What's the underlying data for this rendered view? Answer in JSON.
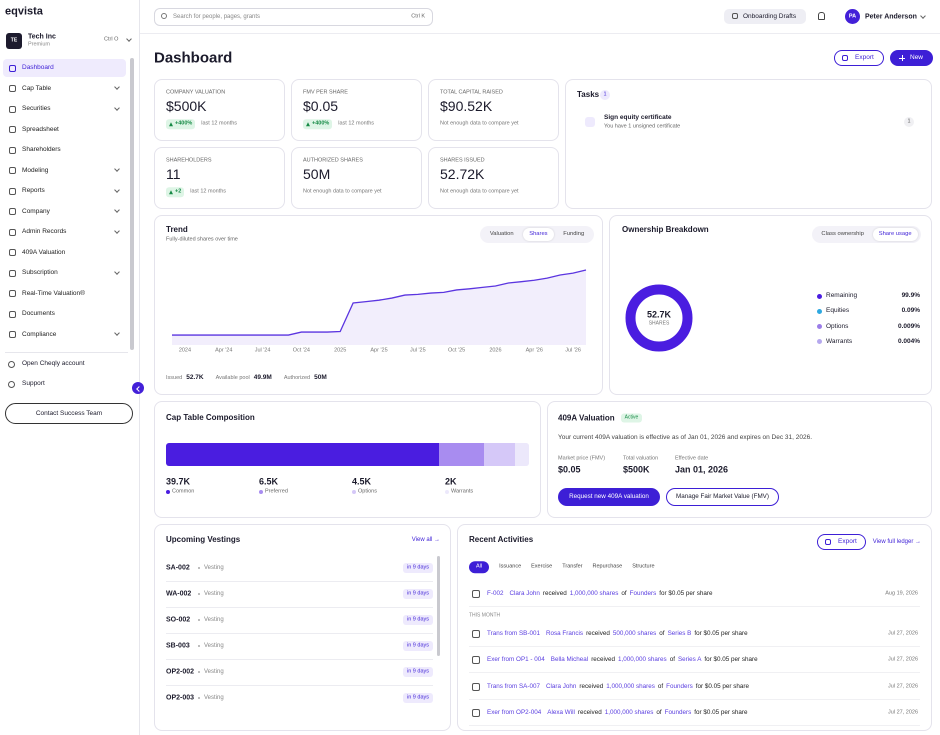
{
  "sidebar": {
    "logo": "eqvista",
    "company": {
      "initials": "TE",
      "name": "Tech Inc",
      "plan": "Premium",
      "shortcut": "Ctrl O"
    },
    "nav": [
      {
        "label": "Dashboard",
        "active": true
      },
      {
        "label": "Cap Table",
        "expandable": true
      },
      {
        "label": "Securities",
        "expandable": true
      },
      {
        "label": "Spreadsheet"
      },
      {
        "label": "Shareholders"
      },
      {
        "label": "Modeling",
        "expandable": true
      },
      {
        "label": "Reports",
        "expandable": true
      },
      {
        "label": "Company",
        "expandable": true
      },
      {
        "label": "Admin Records",
        "expandable": true
      },
      {
        "label": "409A Valuation"
      },
      {
        "label": "Subscription",
        "expandable": true
      },
      {
        "label": "Real-Time Valuation®"
      },
      {
        "label": "Documents"
      },
      {
        "label": "Compliance",
        "expandable": true
      }
    ],
    "links": [
      "Open Cheqly account",
      "Support"
    ],
    "button": "Contact Success Team"
  },
  "topbar": {
    "search_placeholder": "Search for people, pages, grants",
    "search_shortcut": "Ctrl K",
    "drafts_button": "Onboarding Drafts",
    "user": {
      "initials": "PA",
      "name": "Peter Anderson"
    }
  },
  "header": {
    "title": "Dashboard",
    "export_button": "Export",
    "new_button": "New"
  },
  "stats": [
    {
      "label": "COMPANY VALUATION",
      "value": "$500K",
      "badge": "+400%",
      "note": "last 12 months"
    },
    {
      "label": "FMV PER SHARE",
      "value": "$0.05",
      "badge": "+400%",
      "note": "last 12 months"
    },
    {
      "label": "TOTAL CAPITAL RAISED",
      "value": "$90.52K",
      "note": "Not enough data to compare yet"
    },
    {
      "label": "SHAREHOLDERS",
      "value": 11,
      "badge": "+2",
      "note": "last 12 months"
    },
    {
      "label": "AUTHORIZED SHARES",
      "value": "50M",
      "note": "Not enough data to compare yet"
    },
    {
      "label": "SHARES ISSUED",
      "value": "52.72K",
      "note": "Not enough data to compare yet"
    }
  ],
  "tasks": {
    "title": "Tasks",
    "count": 1,
    "items": [
      {
        "title": "Sign equity certificate",
        "subtitle": "You have 1 unsigned certificate",
        "count": 1
      }
    ]
  },
  "trend": {
    "title": "Trend",
    "subtitle": "Fully-diluted shares over time",
    "tabs": [
      {
        "label": "Valuation"
      },
      {
        "label": "Shares",
        "active": true
      },
      {
        "label": "Funding"
      }
    ],
    "color": "#5b35e0",
    "categories": [
      null,
      "2024",
      null,
      null,
      "Apr '24",
      null,
      null,
      "Jul '24",
      null,
      null,
      "Oct '24",
      null,
      null,
      "2025",
      null,
      null,
      "Apr '25",
      null,
      null,
      "Jul '25",
      null,
      null,
      "Oct '25",
      null,
      null,
      "2026",
      null,
      null,
      "Apr '26",
      null,
      null,
      "Jul '26",
      null
    ],
    "values": [
      7000,
      7000,
      7000,
      7000,
      7000,
      7000,
      7000,
      7000,
      7000,
      7000,
      9100,
      9100,
      9100,
      9500,
      29500,
      30500,
      31500,
      33000,
      35100,
      35600,
      36500,
      37000,
      38700,
      39500,
      40500,
      41500,
      43600,
      44500,
      45500,
      47000,
      49200,
      50500,
      52720
    ],
    "summary": [
      {
        "label": "Issued",
        "value": "52.7K"
      },
      {
        "label": "Available pool",
        "value": "49.9M"
      },
      {
        "label": "Authorized",
        "value": "50M"
      }
    ]
  },
  "ownership": {
    "title": "Ownership Breakdown",
    "tabs": [
      {
        "label": "Class ownership"
      },
      {
        "label": "Share usage",
        "active": true
      }
    ],
    "center_value": "52.7K",
    "center_label": "SHARES",
    "slices": [
      {
        "name": "Remaining",
        "value": 99.9,
        "value_label": "99.9%",
        "color": "#4a1de0"
      },
      {
        "name": "Equities",
        "value": 0.09,
        "value_label": "0.09%",
        "color": "#2ea8e0"
      },
      {
        "name": "Options",
        "value": 0.009,
        "value_label": "0.009%",
        "color": "#9b7de8"
      },
      {
        "name": "Warrants",
        "value": 0.004,
        "value_label": "0.004%",
        "color": "#b5a8ee"
      }
    ]
  },
  "cap_table": {
    "title": "Cap Table Composition",
    "items": [
      {
        "name": "Common",
        "value": 39700,
        "value_label": "39.7K",
        "color": "#4a1de0"
      },
      {
        "name": "Preferred",
        "value": 6500,
        "value_label": "6.5K",
        "color": "#a88cf0"
      },
      {
        "name": "Options",
        "value": 4500,
        "value_label": "4.5K",
        "color": "#d5c8f8"
      },
      {
        "name": "Warrants",
        "value": 2000,
        "value_label": "2K",
        "color": "#ece8fb"
      }
    ]
  },
  "valuation_409a": {
    "title": "409A Valuation",
    "status": "Active",
    "description": "Your current 409A valuation is effective as of Jan 01, 2026 and expires on Dec 31, 2026.",
    "fields": [
      {
        "label": "Market price (FMV)",
        "value": "$0.05"
      },
      {
        "label": "Total valuation",
        "value": "$500K"
      },
      {
        "label": "Effective date",
        "value": "Jan 01, 2026"
      }
    ],
    "primary_button": "Request new 409A valuation",
    "secondary_button": "Manage Fair Market Value (FMV)"
  },
  "vestings": {
    "title": "Upcoming Vestings",
    "link": "View all →",
    "rows": [
      {
        "code": "SA-002",
        "status": "Vesting",
        "due": "in 9 days"
      },
      {
        "code": "WA-002",
        "status": "Vesting",
        "due": "in 9 days"
      },
      {
        "code": "SO-002",
        "status": "Vesting",
        "due": "in 9 days"
      },
      {
        "code": "SB-003",
        "status": "Vesting",
        "due": "in 9 days"
      },
      {
        "code": "OP2-002",
        "status": "Vesting",
        "due": "in 9 days"
      },
      {
        "code": "OP2-003",
        "status": "Vesting",
        "due": "in 9 days"
      }
    ]
  },
  "activities": {
    "title": "Recent Activities",
    "export_button": "Export",
    "link": "View full ledger →",
    "filters": [
      {
        "label": "All",
        "active": true
      },
      {
        "label": "Issuance"
      },
      {
        "label": "Exercise"
      },
      {
        "label": "Transfer"
      },
      {
        "label": "Repurchase"
      },
      {
        "label": "Structure"
      }
    ],
    "groups": [
      {
        "rows": [
          {
            "ref": "F-002",
            "person": "Clara John",
            "verb": "received",
            "amount": "1,000,000 shares",
            "prep": "of",
            "class": "Founders",
            "price": "for $0.05 per share",
            "date": "Aug 19, 2026"
          }
        ]
      },
      {
        "heading": "THIS MONTH",
        "rows": [
          {
            "ref": "Trans from SB-001",
            "person": "Rosa Francis",
            "verb": "received",
            "amount": "500,000 shares",
            "prep": "of",
            "class": "Series B",
            "price": "for $0.05 per share",
            "date": "Jul 27, 2026"
          },
          {
            "ref": "Exer from OP1 - 004",
            "person": "Bella Micheal",
            "verb": "received",
            "amount": "1,000,000 shares",
            "prep": "of",
            "class": "Series A",
            "price": "for $0.05 per share",
            "date": "Jul 27, 2026"
          },
          {
            "ref": "Trans from SA-007",
            "person": "Clara John",
            "verb": "received",
            "amount": "1,000,000 shares",
            "prep": "of",
            "class": "Founders",
            "price": "for $0.05 per share",
            "date": "Jul 27, 2026"
          },
          {
            "ref": "Exer from OP2-004",
            "person": "Alexa Will",
            "verb": "received",
            "amount": "1,000,000 shares",
            "prep": "of",
            "class": "Founders",
            "price": "for $0.05 per share",
            "date": "Jul 27, 2026"
          }
        ]
      }
    ]
  }
}
